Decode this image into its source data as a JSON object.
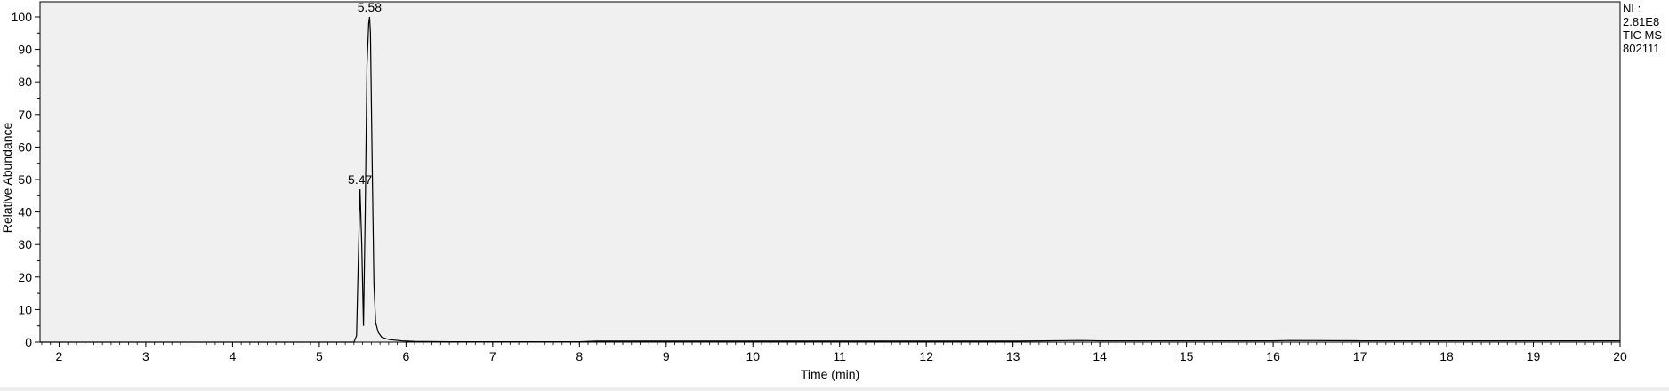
{
  "chart_data": {
    "type": "line",
    "xlabel": "Time (min)",
    "ylabel": "Relative Abundance",
    "xlim": [
      1.78,
      20
    ],
    "ylim": [
      0,
      100
    ],
    "x_ticks": [
      2,
      3,
      4,
      5,
      6,
      7,
      8,
      9,
      10,
      11,
      12,
      13,
      14,
      15,
      16,
      17,
      18,
      19,
      20
    ],
    "y_ticks": [
      0,
      10,
      20,
      30,
      40,
      50,
      60,
      70,
      80,
      90,
      100
    ],
    "info": [
      "NL:",
      "2.81E8",
      "TIC  MS",
      "802111"
    ],
    "peak_labels": [
      {
        "text": "5.58",
        "x": 5.58,
        "y": 100
      },
      {
        "text": "5.47",
        "x": 5.47,
        "y": 47
      }
    ],
    "series": [
      {
        "x": [
          1.78,
          3.0,
          4.0,
          5.0,
          5.4,
          5.43,
          5.45,
          5.47,
          5.49,
          5.51,
          5.53,
          5.55,
          5.57,
          5.58,
          5.59,
          5.61,
          5.63,
          5.65,
          5.68,
          5.72,
          5.8,
          5.95,
          6.1,
          6.5,
          7.0,
          8.0,
          8.2,
          9.0,
          10.0,
          11.0,
          12.0,
          13.0,
          13.8,
          14.0,
          15.0,
          16.0,
          16.2,
          17.0,
          18.0,
          19.0,
          20.0
        ],
        "y": [
          0,
          0,
          0,
          0,
          0,
          2,
          25,
          47,
          30,
          5,
          40,
          85,
          98,
          100,
          95,
          55,
          18,
          6,
          3,
          1.5,
          0.8,
          0.4,
          0.2,
          0.1,
          0.1,
          0.1,
          0.3,
          0.3,
          0.3,
          0.3,
          0.3,
          0.3,
          0.5,
          0.4,
          0.4,
          0.4,
          0.5,
          0.4,
          0.4,
          0.4,
          0.4
        ]
      }
    ]
  }
}
